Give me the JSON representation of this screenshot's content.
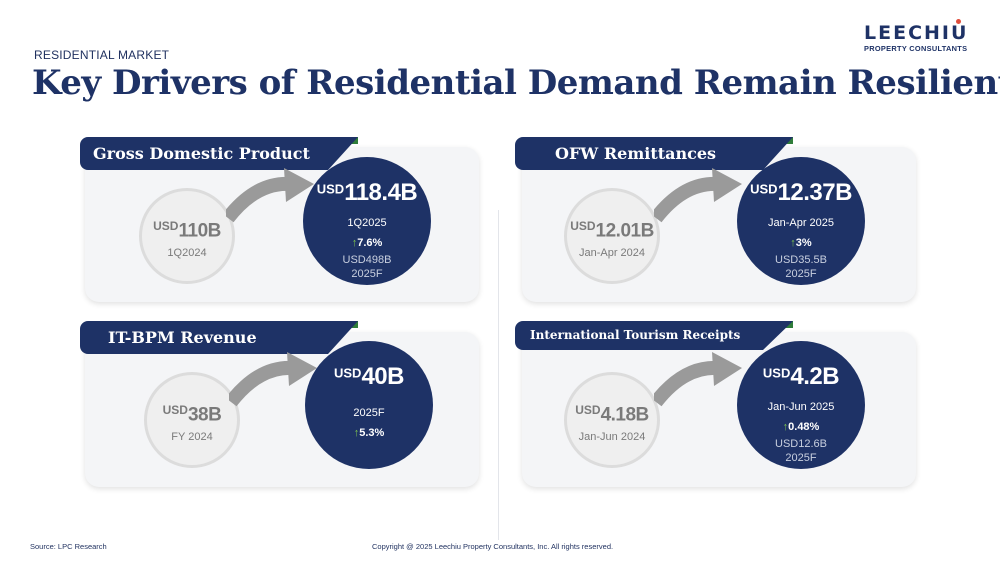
{
  "header": {
    "kicker": "RESIDENTIAL MARKET",
    "title": "Key Drivers of Residential Demand Remain Resilient"
  },
  "logo": {
    "name": "LEECHIU",
    "tagline": "PROPERTY CONSULTANTS"
  },
  "colors": {
    "navy": "#1e3266",
    "green_accent": "#2f7d3a",
    "up_arrow": "#7bc24f",
    "arrow_gray": "#9a9a9a"
  },
  "cards": {
    "gdp": {
      "title": "Gross Domestic Product",
      "prev": {
        "currency": "USD",
        "amount": "110B",
        "period": "1Q2024"
      },
      "cur": {
        "currency": "USD",
        "amount": "118.4B",
        "period": "1Q2025",
        "change": "7.6%",
        "forecast_value": "USD498B",
        "forecast_label": "2025F"
      }
    },
    "ofw": {
      "title": "OFW Remittances",
      "prev": {
        "currency": "USD",
        "amount": "12.01B",
        "period": "Jan-Apr 2024"
      },
      "cur": {
        "currency": "USD",
        "amount": "12.37B",
        "period": "Jan-Apr 2025",
        "change": "3%",
        "forecast_value": "USD35.5B",
        "forecast_label": "2025F"
      }
    },
    "itbpm": {
      "title": "IT-BPM Revenue",
      "prev": {
        "currency": "USD",
        "amount": "38B",
        "period": "FY 2024"
      },
      "cur": {
        "currency": "USD",
        "amount": "40B",
        "period": "2025F",
        "change": "5.3%"
      }
    },
    "tourism": {
      "title": "International Tourism Receipts",
      "prev": {
        "currency": "USD",
        "amount": "4.18B",
        "period": "Jan-Jun 2024"
      },
      "cur": {
        "currency": "USD",
        "amount": "4.2B",
        "period": "Jan-Jun 2025",
        "change": "0.48%",
        "forecast_value": "USD12.6B",
        "forecast_label": "2025F"
      }
    }
  },
  "footer": {
    "source": "Source: LPC Research",
    "copyright": "Copyright @ 2025 Leechiu Property Consultants, Inc. All rights reserved."
  }
}
